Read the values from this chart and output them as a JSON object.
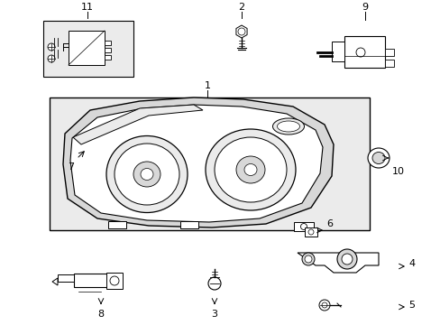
{
  "bg": "#ffffff",
  "lc": "#000000",
  "gray1": "#d8d8d8",
  "gray2": "#ebebeb",
  "figsize": [
    4.89,
    3.6
  ],
  "dpi": 100
}
